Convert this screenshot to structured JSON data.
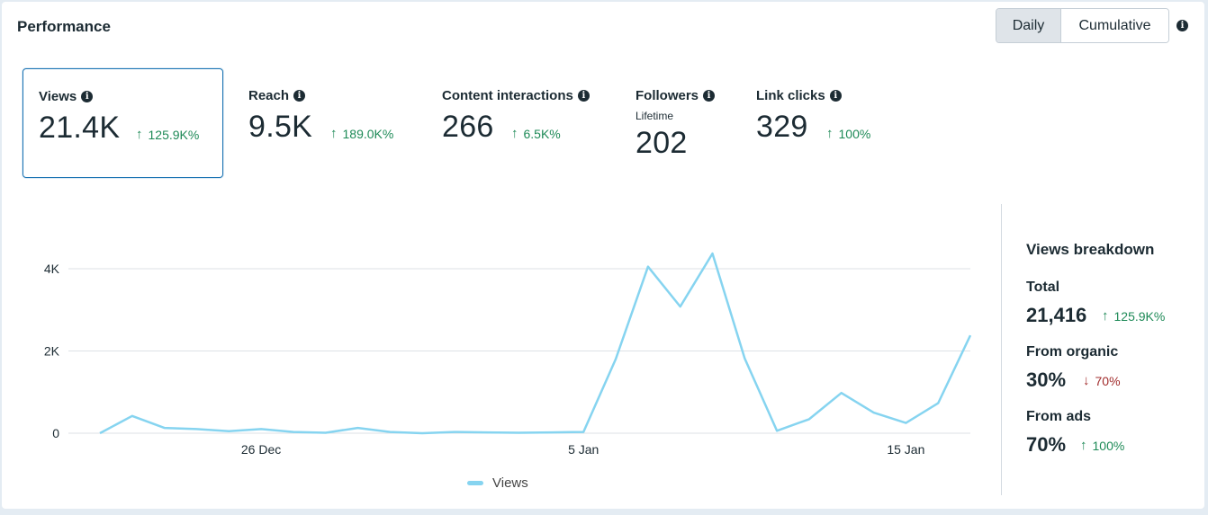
{
  "header": {
    "title": "Performance",
    "toggle": {
      "daily_label": "Daily",
      "cumulative_label": "Cumulative",
      "selected": "Daily"
    }
  },
  "metrics": [
    {
      "label": "Views",
      "value": "21.4K",
      "change": "125.9K%",
      "direction": "up",
      "selected": true
    },
    {
      "label": "Reach",
      "value": "9.5K",
      "change": "189.0K%",
      "direction": "up"
    },
    {
      "label": "Content interactions",
      "value": "266",
      "change": "6.5K%",
      "direction": "up"
    },
    {
      "label": "Followers",
      "sublabel": "Lifetime",
      "value": "202"
    },
    {
      "label": "Link clicks",
      "value": "329",
      "change": "100%",
      "direction": "up"
    }
  ],
  "chart_data": {
    "type": "line",
    "x_tick_labels": [
      "26 Dec",
      "5 Jan",
      "15 Jan"
    ],
    "y_tick_labels": [
      "0",
      "2K",
      "4K"
    ],
    "ylim": [
      0,
      4600
    ],
    "grid": true,
    "legend_position": "bottom-center",
    "series": [
      {
        "name": "Views",
        "color": "#86d4f0",
        "x": [
          "21 Dec",
          "22 Dec",
          "23 Dec",
          "24 Dec",
          "25 Dec",
          "26 Dec",
          "27 Dec",
          "28 Dec",
          "29 Dec",
          "30 Dec",
          "31 Dec",
          "1 Jan",
          "2 Jan",
          "3 Jan",
          "4 Jan",
          "5 Jan",
          "6 Jan",
          "7 Jan",
          "8 Jan",
          "9 Jan",
          "10 Jan",
          "11 Jan",
          "12 Jan",
          "13 Jan",
          "14 Jan",
          "15 Jan",
          "16 Jan",
          "17 Jan"
        ],
        "values": [
          0,
          420,
          130,
          100,
          50,
          100,
          30,
          10,
          130,
          30,
          0,
          30,
          20,
          10,
          20,
          30,
          1800,
          4050,
          3080,
          4370,
          1820,
          60,
          340,
          980,
          500,
          250,
          730,
          2380
        ]
      }
    ]
  },
  "breakdown": {
    "title": "Views breakdown",
    "items": [
      {
        "label": "Total",
        "value": "21,416",
        "change": "125.9K%",
        "direction": "up"
      },
      {
        "label": "From organic",
        "value": "30%",
        "change": "70%",
        "direction": "down"
      },
      {
        "label": "From ads",
        "value": "70%",
        "change": "100%",
        "direction": "up"
      }
    ]
  },
  "icons": {
    "info": "info-icon",
    "up": "arrow-up-icon",
    "down": "arrow-down-icon"
  }
}
